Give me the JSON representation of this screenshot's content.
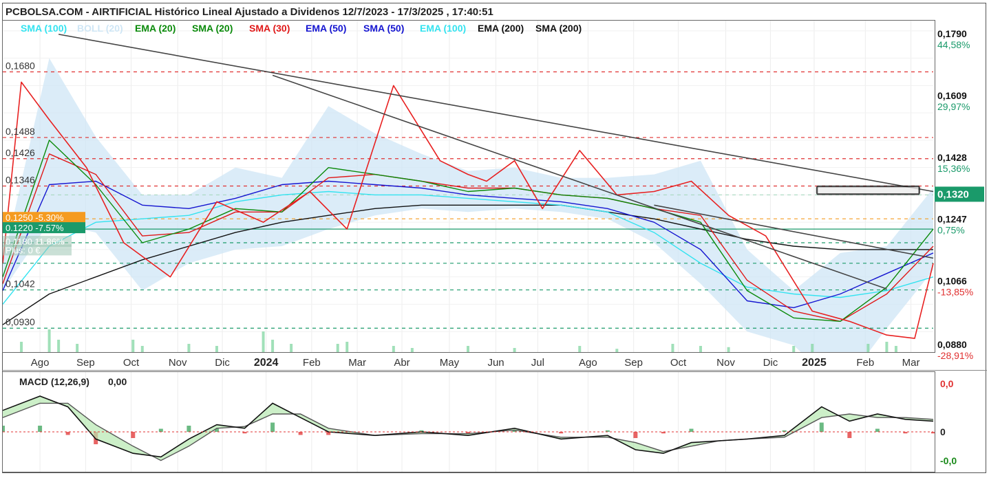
{
  "title": "PCBOLSA.COM - AIRTIFICIAL Histórico Lineal Ajustado a Dividenos 12/7/2023 - 17/3/2025 , 17:40:51",
  "legend": [
    {
      "label": "SMA (100)",
      "color": "#33e3f0"
    },
    {
      "label": "BOLL (20)",
      "color": "#cfe6f5"
    },
    {
      "label": "EMA (20)",
      "color": "#0a8a0a"
    },
    {
      "label": "SMA (20)",
      "color": "#0a8a0a"
    },
    {
      "label": "SMA (30)",
      "color": "#e01818"
    },
    {
      "label": "EMA (50)",
      "color": "#1515d0"
    },
    {
      "label": "SMA (50)",
      "color": "#1515d0"
    },
    {
      "label": "EMA (100)",
      "color": "#33e3f0"
    },
    {
      "label": "EMA (200)",
      "color": "#111111"
    },
    {
      "label": "SMA (200)",
      "color": "#111111"
    }
  ],
  "chart_data": [
    {
      "type": "line",
      "title": "PCBOLSA.COM - AIRTIFICIAL Histórico Lineal Ajustado a Dividenos 12/7/2023 - 17/3/2025 , 17:40:51",
      "x_ticks": [
        "Ago",
        "Sep",
        "Oct",
        "Nov",
        "Dic",
        "2024",
        "Feb",
        "Mar",
        "Abr",
        "May",
        "Jun",
        "Jul",
        "Ago",
        "Sep",
        "Oct",
        "Nov",
        "Dic",
        "2025",
        "Feb",
        "Mar"
      ],
      "ylim": [
        0.086,
        0.183
      ],
      "right_axis": [
        {
          "value": "0,1790",
          "pct": "44,58%",
          "color": "#1a9a6a"
        },
        {
          "value": "0,1609",
          "pct": "29,97%",
          "color": "#1a9a6a"
        },
        {
          "value": "0,1428",
          "pct": "15,36%",
          "color": "#1a9a6a"
        },
        {
          "value": "0,1320",
          "pct": "",
          "color": "#1a9a6a"
        },
        {
          "value": "0,1247",
          "pct": "0,75%",
          "color": "#1a9a6a"
        },
        {
          "value": "0,1066",
          "pct": "-13,85%",
          "color": "#e03030"
        },
        {
          "value": "0,0880",
          "pct": "-28,91%",
          "color": "#e03030"
        }
      ],
      "left_levels": [
        "0,1680",
        "0,1488",
        "0,1426",
        "0,1346",
        "0,1042",
        "0,0930"
      ],
      "horizontal_levels": [
        {
          "value": 0.168,
          "color": "#e03030"
        },
        {
          "value": 0.1488,
          "color": "#e03030"
        },
        {
          "value": 0.1426,
          "color": "#e03030"
        },
        {
          "value": 0.1346,
          "color": "#e03030"
        },
        {
          "value": 0.132,
          "color": "#a8d8c0"
        },
        {
          "value": 0.125,
          "color": "#f59b20"
        },
        {
          "value": 0.122,
          "color": "#1a9a6a"
        },
        {
          "value": 0.118,
          "color": "#1a9a6a"
        },
        {
          "value": 0.112,
          "color": "#1a9a6a"
        },
        {
          "value": 0.1042,
          "color": "#1a9a6a"
        },
        {
          "value": 0.093,
          "color": "#1a9a6a"
        }
      ],
      "position_labels": [
        {
          "text": "0.1250 -5.30%",
          "color": "#f59b20"
        },
        {
          "text": "0.1220 -7.57%",
          "color": "#1a9a6a"
        },
        {
          "text": "0.1180 11.86%",
          "color": "#9ec6b4"
        },
        {
          "text": "Plus: 0 €",
          "color": "#9ec6b4"
        }
      ],
      "last_price": "0,1320",
      "series": [
        {
          "name": "Precio",
          "color": "#e82020",
          "x": [
            0,
            2,
            5,
            9,
            13,
            18,
            23,
            28,
            33,
            37,
            42,
            47,
            50,
            52,
            55,
            58,
            62,
            66,
            70,
            74,
            78,
            82,
            87,
            91,
            95,
            98,
            100
          ],
          "values": [
            0.112,
            0.165,
            0.154,
            0.14,
            0.118,
            0.108,
            0.13,
            0.124,
            0.133,
            0.122,
            0.164,
            0.142,
            0.138,
            0.136,
            0.142,
            0.128,
            0.145,
            0.132,
            0.133,
            0.136,
            0.126,
            0.12,
            0.098,
            0.095,
            0.091,
            0.09,
            0.112
          ]
        },
        {
          "name": "SMA (20)",
          "color": "#0a8a0a",
          "x": [
            0,
            5,
            10,
            15,
            20,
            25,
            30,
            35,
            40,
            45,
            50,
            55,
            60,
            65,
            70,
            75,
            80,
            85,
            90,
            95,
            100
          ],
          "values": [
            0.108,
            0.148,
            0.135,
            0.118,
            0.122,
            0.128,
            0.127,
            0.14,
            0.138,
            0.136,
            0.133,
            0.134,
            0.132,
            0.131,
            0.128,
            0.124,
            0.104,
            0.096,
            0.095,
            0.105,
            0.122
          ]
        },
        {
          "name": "SMA (30)",
          "color": "#e01818",
          "x": [
            0,
            5,
            10,
            15,
            20,
            25,
            30,
            35,
            40,
            45,
            50,
            55,
            60,
            65,
            70,
            75,
            80,
            85,
            90,
            95,
            100
          ],
          "values": [
            0.106,
            0.144,
            0.138,
            0.12,
            0.121,
            0.127,
            0.127,
            0.137,
            0.138,
            0.136,
            0.134,
            0.134,
            0.132,
            0.131,
            0.128,
            0.126,
            0.107,
            0.098,
            0.095,
            0.103,
            0.117
          ]
        },
        {
          "name": "EMA (50)",
          "color": "#1515d0",
          "x": [
            0,
            5,
            10,
            15,
            20,
            25,
            30,
            35,
            40,
            45,
            50,
            55,
            60,
            65,
            70,
            75,
            80,
            85,
            90,
            95,
            100
          ],
          "values": [
            0.104,
            0.135,
            0.136,
            0.129,
            0.128,
            0.131,
            0.135,
            0.136,
            0.135,
            0.134,
            0.132,
            0.131,
            0.13,
            0.128,
            0.124,
            0.116,
            0.101,
            0.099,
            0.103,
            0.109,
            0.115
          ]
        },
        {
          "name": "EMA (100)",
          "color": "#33e3f0",
          "x": [
            0,
            5,
            10,
            15,
            20,
            25,
            30,
            35,
            40,
            45,
            50,
            55,
            60,
            65,
            70,
            75,
            80,
            85,
            90,
            95,
            100
          ],
          "values": [
            0.1,
            0.117,
            0.124,
            0.125,
            0.126,
            0.13,
            0.132,
            0.133,
            0.132,
            0.132,
            0.131,
            0.13,
            0.129,
            0.127,
            0.121,
            0.112,
            0.105,
            0.103,
            0.102,
            0.104,
            0.108
          ]
        },
        {
          "name": "EMA (200)",
          "color": "#111111",
          "x": [
            0,
            5,
            10,
            15,
            20,
            25,
            30,
            35,
            40,
            45,
            50,
            55,
            60,
            65,
            70,
            75,
            80,
            85,
            90,
            95,
            100
          ],
          "values": [
            0.094,
            0.103,
            0.108,
            0.113,
            0.117,
            0.121,
            0.124,
            0.126,
            0.128,
            0.129,
            0.129,
            0.129,
            0.129,
            0.127,
            0.125,
            0.122,
            0.119,
            0.117,
            0.116,
            0.116,
            0.116
          ]
        }
      ],
      "trendlines": [
        {
          "x": [
            6,
            100
          ],
          "values": [
            0.179,
            0.133
          ]
        },
        {
          "x": [
            29,
            95
          ],
          "values": [
            0.167,
            0.1045
          ]
        },
        {
          "x": [
            70,
            100
          ],
          "values": [
            0.129,
            0.1135
          ]
        }
      ],
      "volume": [
        [
          2,
          0.25
        ],
        [
          5,
          0.55
        ],
        [
          6,
          0.3
        ],
        [
          8,
          0.2
        ],
        [
          14,
          0.3
        ],
        [
          15,
          0.15
        ],
        [
          20,
          0.2
        ],
        [
          23,
          0.15
        ],
        [
          28,
          0.5
        ],
        [
          29,
          0.3
        ],
        [
          31,
          0.2
        ],
        [
          36,
          0.2
        ],
        [
          37,
          0.25
        ],
        [
          42,
          0.15
        ],
        [
          44,
          0.1
        ],
        [
          50,
          0.15
        ],
        [
          55,
          0.1
        ],
        [
          62,
          0.15
        ],
        [
          66,
          0.08
        ],
        [
          72,
          0.2
        ],
        [
          75,
          0.15
        ],
        [
          78,
          0.12
        ],
        [
          85,
          0.15
        ],
        [
          87,
          0.2
        ],
        [
          93,
          0.2
        ],
        [
          95,
          0.25
        ],
        [
          96,
          0.15
        ]
      ],
      "highlight_box": {
        "x": [
          87.5,
          98.5
        ],
        "values": [
          0.1345,
          0.1322
        ]
      }
    },
    {
      "type": "area",
      "title": "MACD (12,26,9)",
      "current": "0,00",
      "right_axis": [
        {
          "value": "0,0",
          "color": "#e03030"
        },
        {
          "value": "0",
          "color": "#222222"
        },
        {
          "value": "-0,0",
          "color": "#1a8a1a"
        }
      ],
      "x": [
        0,
        4,
        7,
        10,
        14,
        17,
        20,
        23,
        26,
        29,
        32,
        35,
        40,
        45,
        50,
        55,
        60,
        65,
        68,
        71,
        74,
        77,
        80,
        84,
        88,
        91,
        94,
        97,
        100
      ],
      "series": [
        {
          "name": "MACD",
          "color": "#111111",
          "values": [
            0.6,
            1.0,
            0.7,
            -0.2,
            -0.6,
            -0.7,
            -0.2,
            0.2,
            0.1,
            0.8,
            0.4,
            0.0,
            -0.1,
            0.0,
            -0.1,
            0.1,
            -0.2,
            -0.1,
            -0.5,
            -0.6,
            -0.3,
            -0.25,
            -0.2,
            -0.1,
            0.7,
            0.3,
            0.5,
            0.35,
            0.3
          ]
        },
        {
          "name": "Signal",
          "color": "#111111",
          "values": [
            0.4,
            0.8,
            0.8,
            0.2,
            -0.4,
            -0.8,
            -0.4,
            0.1,
            0.15,
            0.5,
            0.5,
            0.1,
            -0.1,
            -0.05,
            -0.05,
            0.05,
            -0.15,
            -0.15,
            -0.3,
            -0.55,
            -0.4,
            -0.25,
            -0.2,
            -0.15,
            0.4,
            0.5,
            0.4,
            0.4,
            0.35
          ]
        }
      ]
    }
  ]
}
